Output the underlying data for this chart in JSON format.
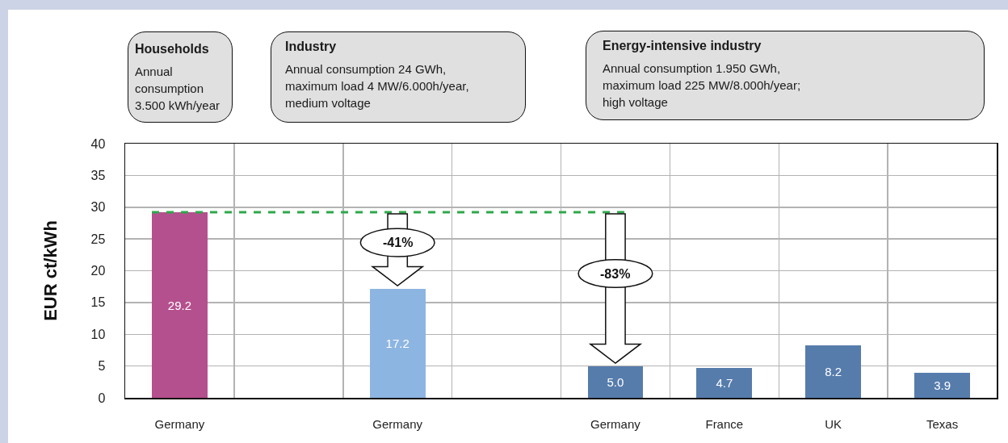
{
  "chart_data": {
    "type": "bar",
    "ylabel": "EUR ct/kWh",
    "categories": [
      "Germany",
      null,
      "Germany",
      null,
      "Germany",
      "France",
      "UK",
      "Texas"
    ],
    "values": [
      29.2,
      null,
      17.2,
      null,
      5.0,
      4.7,
      8.2,
      3.9
    ],
    "colors": [
      "#b5508e",
      null,
      "#8db5e2",
      null,
      "#567cac",
      "#567cac",
      "#567cac",
      "#567cac"
    ],
    "value_labels": [
      "29.2",
      null,
      "17.2",
      null,
      "5.0",
      "4.7",
      "8.2",
      "3.9"
    ],
    "ylim": [
      0,
      40
    ],
    "yticks": [
      0,
      5,
      10,
      15,
      20,
      25,
      30,
      35,
      40
    ],
    "grid": true,
    "ref_lines": [
      {
        "axis": "y",
        "value": 29.2,
        "color": "#2ea84a",
        "line_style": "dashed"
      }
    ],
    "annotations": [
      "Households\nAnnual\nconsumption\n3.500 kWh/year",
      "Industry\nAnnual consumption 24 GWh,\nmaximum load 4 MW/6.000h/year,\nmedium voltage",
      "Energy-intensive industry\nAnnual consumption 1.950 GWh,\nmaximum load 225 MW/8.000h/year;\nhigh voltage",
      "-41%",
      "-83%"
    ]
  }
}
